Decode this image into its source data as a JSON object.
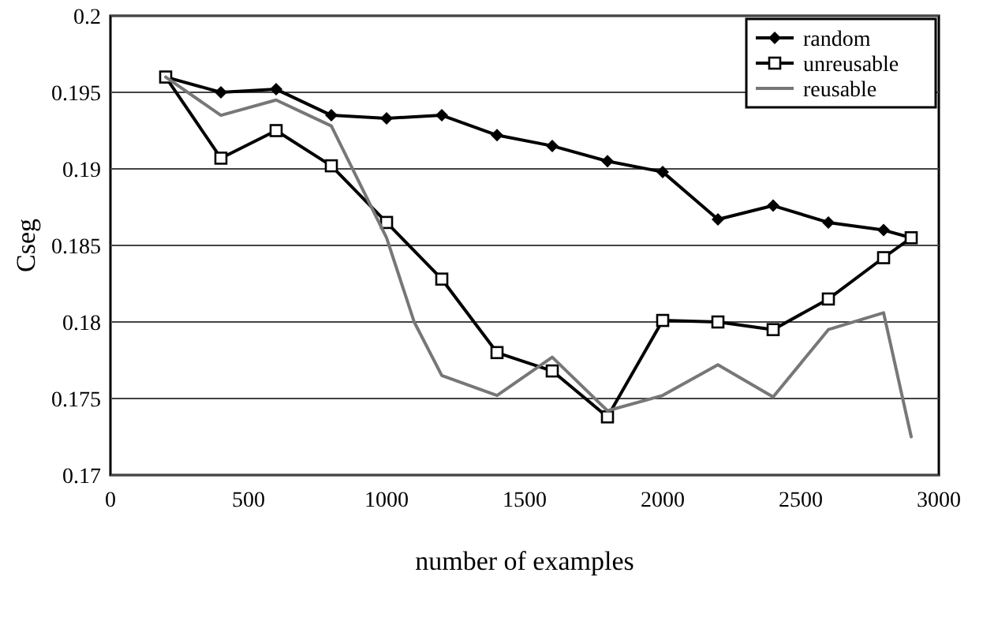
{
  "chart_data": {
    "type": "line",
    "xlabel": "number of examples",
    "ylabel": "Cseg",
    "xlim": [
      0,
      3000
    ],
    "xticks": [
      0,
      500,
      1000,
      1500,
      2000,
      2500,
      3000
    ],
    "ylim": [
      0.17,
      0.2
    ],
    "yticks": [
      {
        "value": 0.17,
        "label": "0.17"
      },
      {
        "value": 0.175,
        "label": "0.175"
      },
      {
        "value": 0.18,
        "label": "0.18"
      },
      {
        "value": 0.185,
        "label": "0.185"
      },
      {
        "value": 0.19,
        "label": "0.19"
      },
      {
        "value": 0.195,
        "label": "0.195"
      },
      {
        "value": 0.2,
        "label": "0.2"
      }
    ],
    "grid": "y",
    "legend": "top right",
    "series": [
      {
        "name": "random",
        "color": "#000000",
        "marker": "diamond",
        "x": [
          200,
          400,
          600,
          800,
          1000,
          1200,
          1400,
          1600,
          1800,
          2000,
          2200,
          2400,
          2600,
          2800,
          2900
        ],
        "values": [
          0.196,
          0.195,
          0.1952,
          0.1935,
          0.1933,
          0.1935,
          0.1922,
          0.1915,
          0.1905,
          0.1898,
          0.1867,
          0.1876,
          0.1865,
          0.186,
          0.1855
        ]
      },
      {
        "name": "unreusable",
        "color": "#000000",
        "marker": "square",
        "x": [
          200,
          400,
          600,
          800,
          1000,
          1200,
          1400,
          1600,
          1800,
          2000,
          2200,
          2400,
          2600,
          2800,
          2900
        ],
        "values": [
          0.196,
          0.1907,
          0.1925,
          0.1902,
          0.1865,
          0.1828,
          0.178,
          0.1768,
          0.1738,
          0.1801,
          0.18,
          0.1795,
          0.1815,
          0.1842,
          0.1855
        ]
      },
      {
        "name": "reusable",
        "color": "#777777",
        "marker": "none",
        "x": [
          200,
          400,
          600,
          800,
          1000,
          1100,
          1200,
          1400,
          1600,
          1800,
          2000,
          2200,
          2400,
          2600,
          2800,
          2900
        ],
        "values": [
          0.196,
          0.1935,
          0.1945,
          0.1928,
          0.1855,
          0.18,
          0.1765,
          0.1752,
          0.1777,
          0.1742,
          0.1752,
          0.1772,
          0.1751,
          0.1795,
          0.1806,
          0.1725
        ]
      }
    ]
  }
}
